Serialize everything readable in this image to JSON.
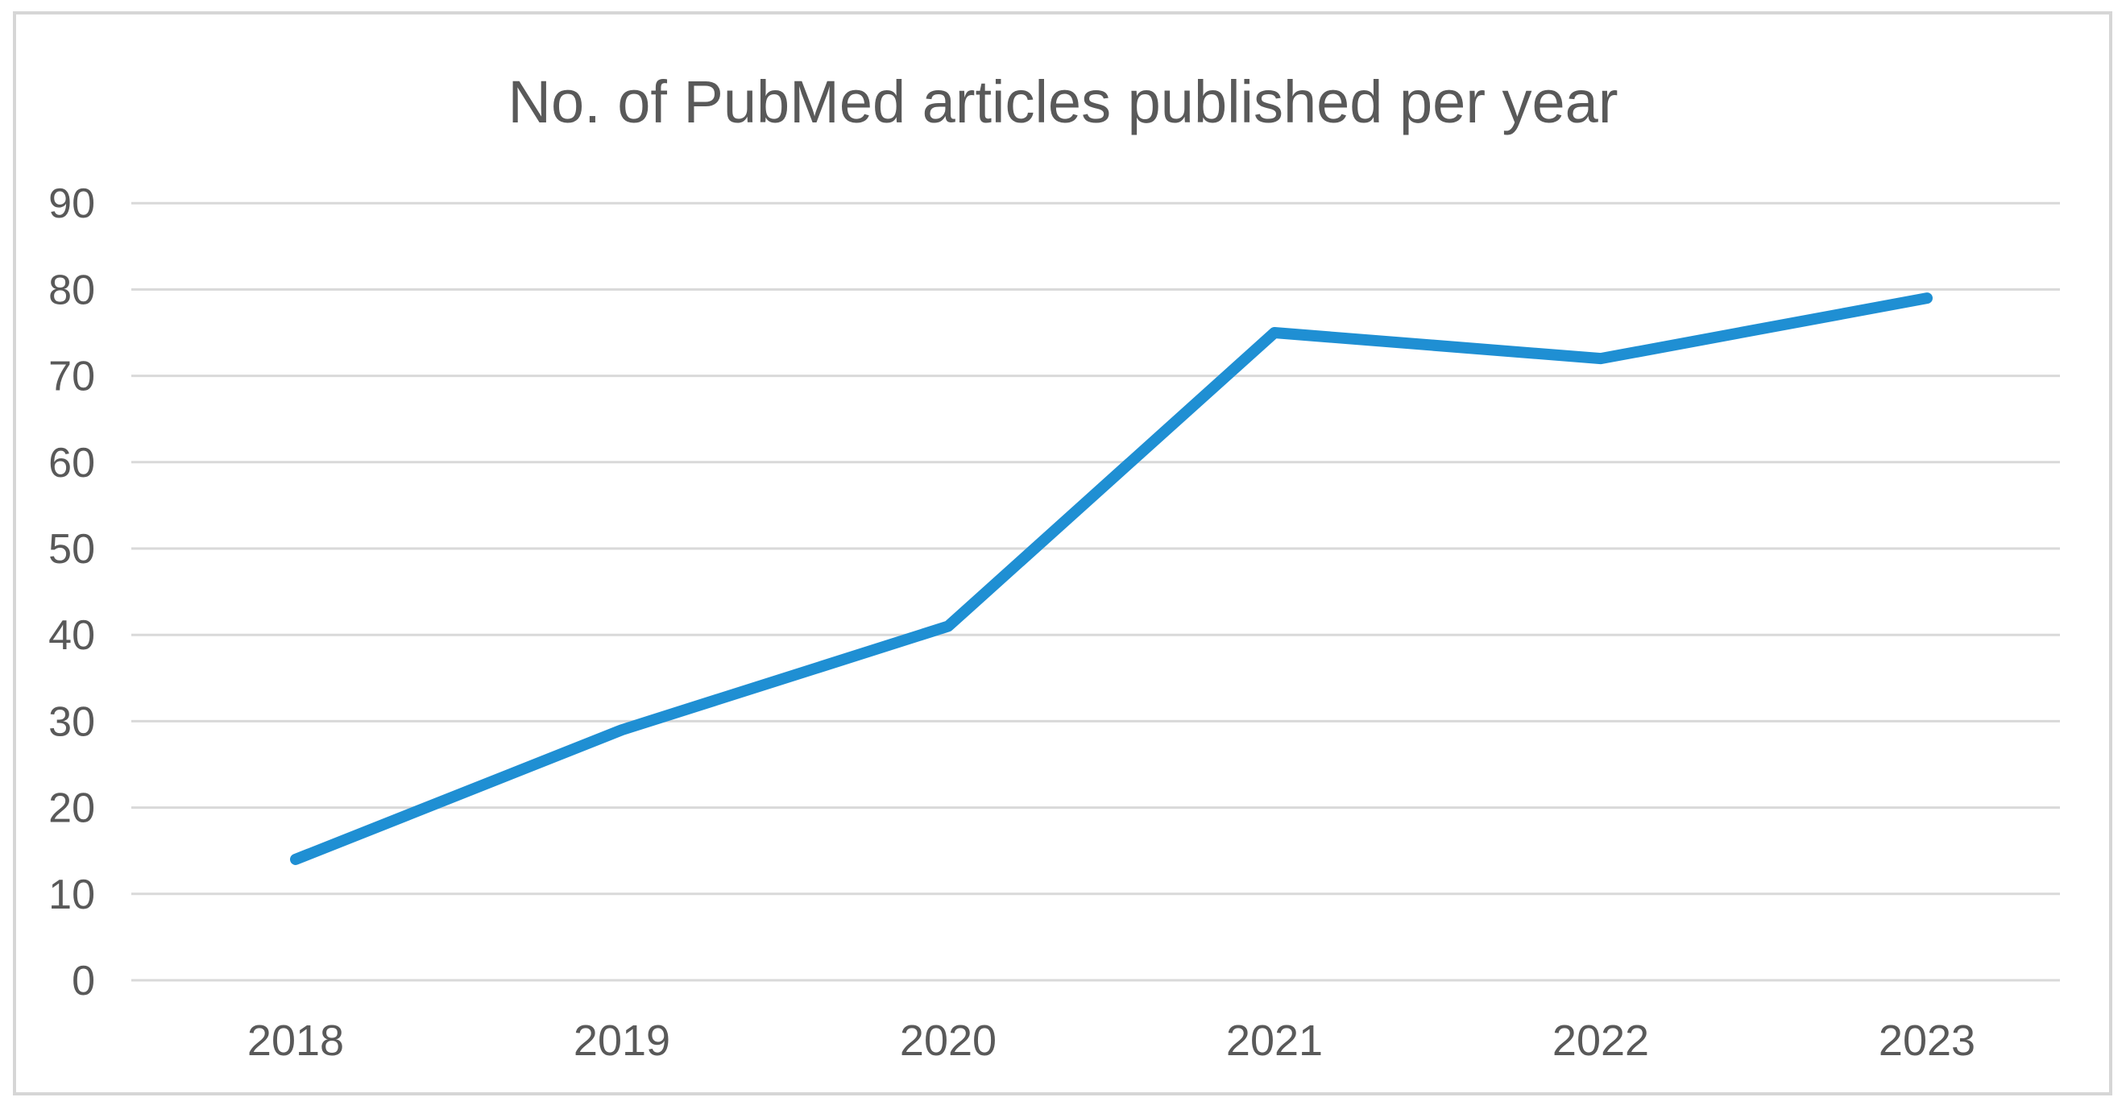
{
  "chart_data": {
    "type": "line",
    "title": "No. of PubMed articles published per year",
    "categories": [
      "2018",
      "2019",
      "2020",
      "2021",
      "2022",
      "2023"
    ],
    "series": [
      {
        "name": "No. of PubMed articles published per year",
        "values": [
          14,
          29,
          41,
          75,
          72,
          79
        ]
      }
    ],
    "xlabel": "",
    "ylabel": "",
    "ylim": [
      0,
      90
    ],
    "ytick_step": 10,
    "y_tick_labels": [
      "0",
      "10",
      "20",
      "30",
      "40",
      "50",
      "60",
      "70",
      "80",
      "90"
    ],
    "grid": true,
    "legend_position": "none"
  },
  "colors": {
    "line": "#1f8fd3",
    "gridline": "#d9d9d9",
    "axis_text": "#595959",
    "title_text": "#595959",
    "border": "#d6d6d6",
    "background": "#ffffff"
  }
}
